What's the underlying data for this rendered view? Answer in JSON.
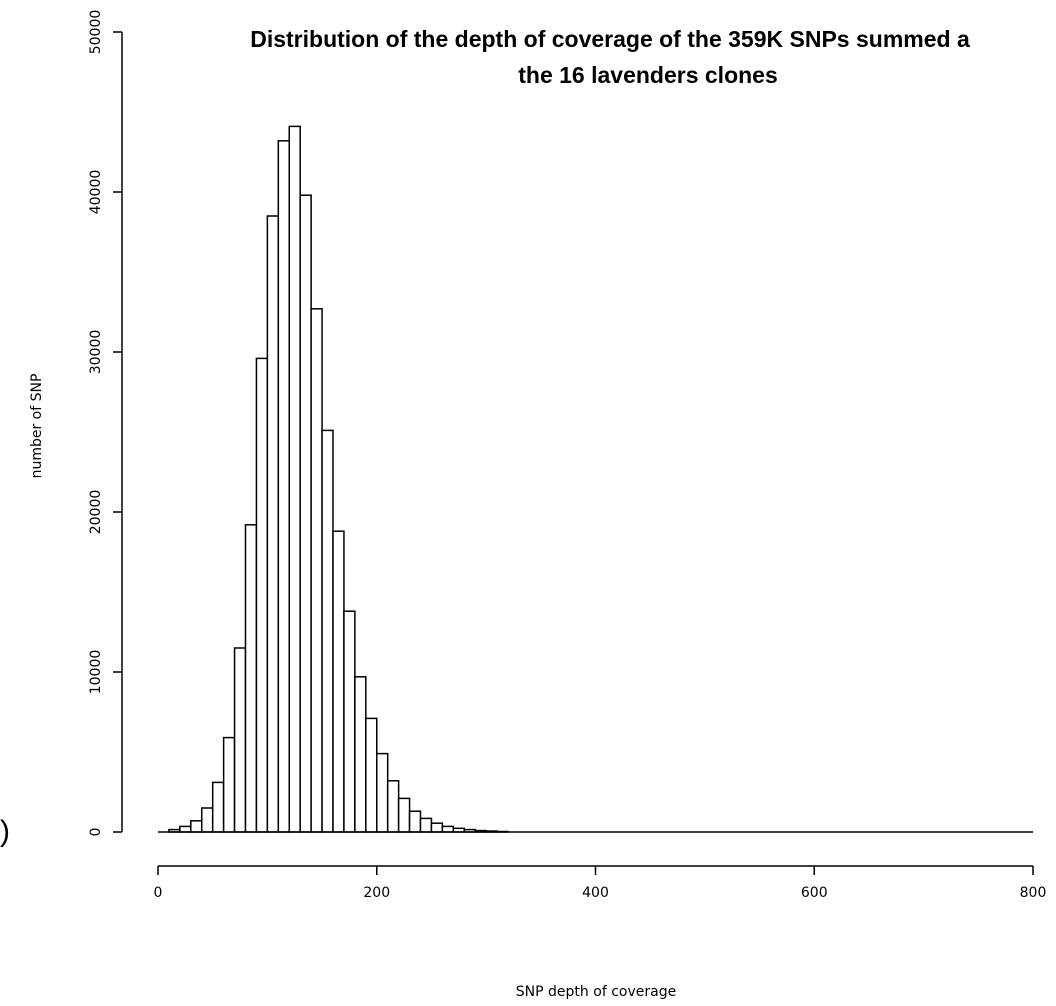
{
  "chart_data": {
    "type": "bar",
    "title_line1": "Distribution of the depth of coverage of the 359K SNPs summed a",
    "title_line2": "the 16 lavenders clones",
    "xlabel": "SNP depth of coverage",
    "ylabel": "number of SNP",
    "xlim": [
      0,
      800
    ],
    "ylim": [
      0,
      50000
    ],
    "x_ticks": [
      "0",
      "200",
      "400",
      "600",
      "800"
    ],
    "y_ticks": [
      "0",
      "10000",
      "20000",
      "30000",
      "40000",
      "50000"
    ],
    "bin_width": 10,
    "bin_start": 0,
    "values": [
      0,
      150,
      350,
      700,
      1500,
      3100,
      5900,
      11500,
      19200,
      29600,
      38500,
      43200,
      44100,
      39800,
      32700,
      25100,
      18800,
      13800,
      9700,
      7100,
      4900,
      3200,
      2100,
      1300,
      850,
      550,
      350,
      230,
      150,
      90,
      60,
      30
    ],
    "stray_mark": ")"
  }
}
